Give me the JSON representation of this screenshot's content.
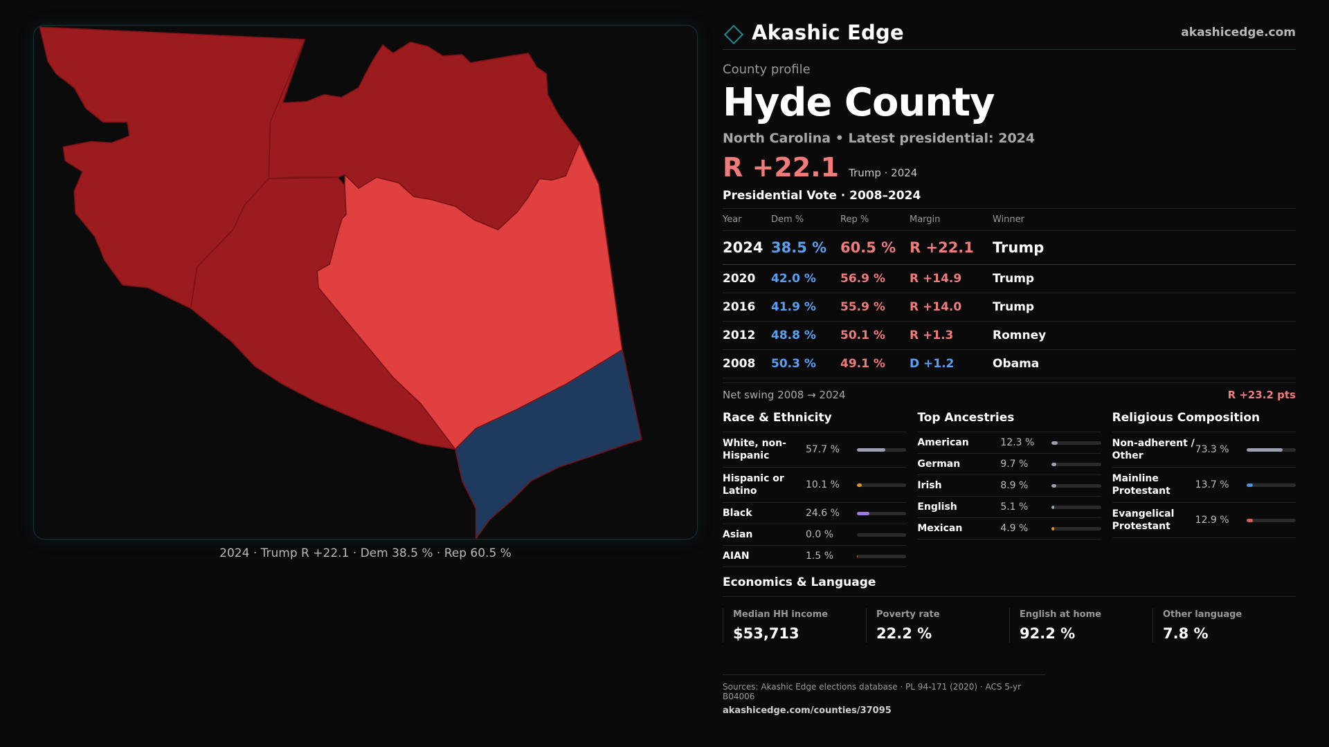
{
  "brand": {
    "name": "Akashic Edge",
    "url": "akashicedge.com",
    "accent": "#1f8c95"
  },
  "profile": {
    "kicker": "County profile",
    "county": "Hyde County",
    "subtitle": "North Carolina • Latest presidential: 2024",
    "margin": "R +22.1",
    "margin_note": "Trump · 2024"
  },
  "map": {
    "caption": "2024 · Trump R +22.1 · Dem 38.5 % · Rep 60.5 %",
    "colors": {
      "rep_strong": "#9b1b1e",
      "rep_lean": "#e04040",
      "dem": "#1f3a5f",
      "border": "#7a1216"
    }
  },
  "votes": {
    "title": "Presidential Vote · 2008–2024",
    "headers": {
      "year": "Year",
      "dem": "Dem %",
      "rep": "Rep %",
      "margin": "Margin",
      "winner": "Winner"
    },
    "rows": [
      {
        "year": "2024",
        "dem": "38.5 %",
        "rep": "60.5 %",
        "margin": "R +22.1",
        "party": "R",
        "winner": "Trump"
      },
      {
        "year": "2020",
        "dem": "42.0 %",
        "rep": "56.9 %",
        "margin": "R +14.9",
        "party": "R",
        "winner": "Trump"
      },
      {
        "year": "2016",
        "dem": "41.9 %",
        "rep": "55.9 %",
        "margin": "R +14.0",
        "party": "R",
        "winner": "Trump"
      },
      {
        "year": "2012",
        "dem": "48.8 %",
        "rep": "50.1 %",
        "margin": "R +1.3",
        "party": "R",
        "winner": "Romney"
      },
      {
        "year": "2008",
        "dem": "50.3 %",
        "rep": "49.1 %",
        "margin": "D +1.2",
        "party": "D",
        "winner": "Obama"
      }
    ],
    "swing_label": "Net swing 2008 → 2024",
    "swing_value": "R +23.2 pts"
  },
  "race": {
    "title": "Race & Ethnicity",
    "items": [
      {
        "label": "White, non-Hispanic",
        "value": "57.7 %",
        "pct": 57.7,
        "color": "#9aa0b0"
      },
      {
        "label": "Hispanic or Latino",
        "value": "10.1 %",
        "pct": 10.1,
        "color": "#e0902a"
      },
      {
        "label": "Black",
        "value": "24.6 %",
        "pct": 24.6,
        "color": "#9a7ae0"
      },
      {
        "label": "Asian",
        "value": "0.0 %",
        "pct": 0.0,
        "color": "#4fb0a0"
      },
      {
        "label": "AIAN",
        "value": "1.5 %",
        "pct": 1.5,
        "color": "#e06a3a"
      }
    ]
  },
  "ancestry": {
    "title": "Top Ancestries",
    "items": [
      {
        "label": "American",
        "value": "12.3 %",
        "pct": 12.3,
        "color": "#9aa0b0"
      },
      {
        "label": "German",
        "value": "9.7 %",
        "pct": 9.7,
        "color": "#9aa0b0"
      },
      {
        "label": "Irish",
        "value": "8.9 %",
        "pct": 8.9,
        "color": "#9aa0b0"
      },
      {
        "label": "English",
        "value": "5.1 %",
        "pct": 5.1,
        "color": "#9aa0b0"
      },
      {
        "label": "Mexican",
        "value": "4.9 %",
        "pct": 4.9,
        "color": "#e0902a"
      }
    ]
  },
  "religion": {
    "title": "Religious Composition",
    "items": [
      {
        "label": "Non-adherent / Other",
        "value": "73.3 %",
        "pct": 73.3,
        "color": "#9aa0b0"
      },
      {
        "label": "Mainline Protestant",
        "value": "13.7 %",
        "pct": 13.7,
        "color": "#4a90e2"
      },
      {
        "label": "Evangelical Protestant",
        "value": "12.9 %",
        "pct": 12.9,
        "color": "#e05a5a"
      }
    ]
  },
  "economics": {
    "title": "Economics & Language",
    "items": [
      {
        "label": "Median HH income",
        "value": "$53,713"
      },
      {
        "label": "Poverty rate",
        "value": "22.2 %"
      },
      {
        "label": "English at home",
        "value": "92.2 %"
      },
      {
        "label": "Other language",
        "value": "7.8 %"
      }
    ]
  },
  "sources": {
    "text": "Sources: Akashic Edge elections database · PL 94-171 (2020) · ACS 5-yr B04006",
    "url": "akashicedge.com/counties/37095"
  }
}
